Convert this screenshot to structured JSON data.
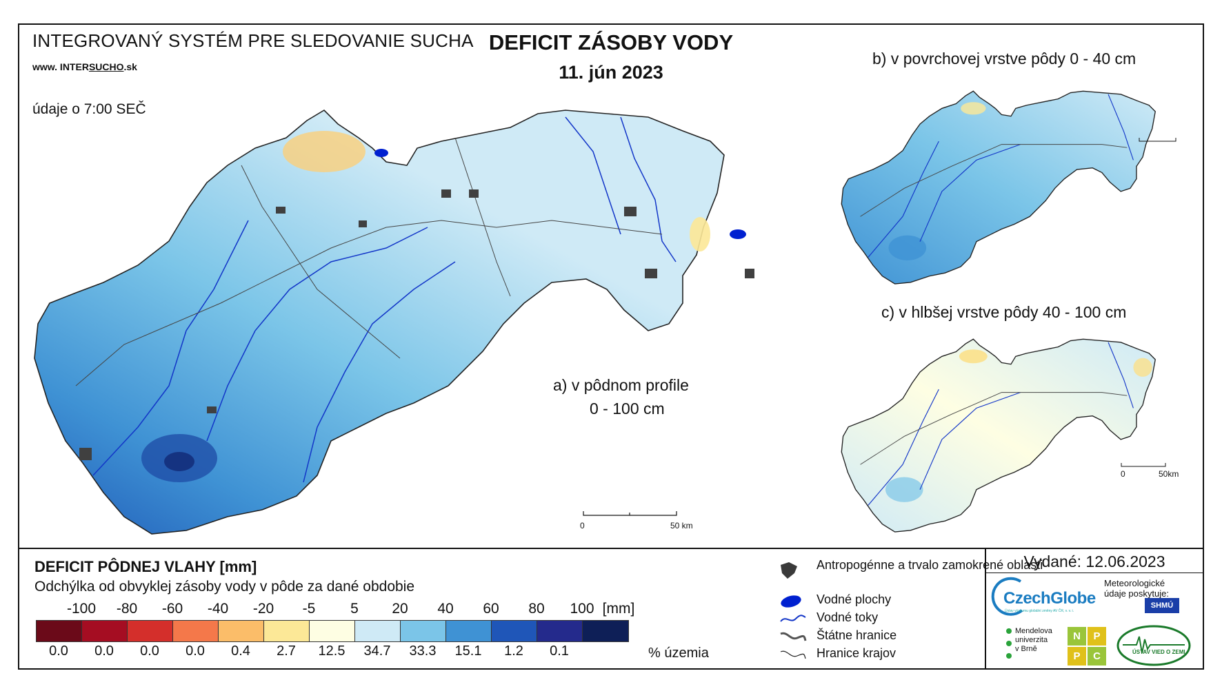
{
  "header": {
    "system_title": "INTEGROVANÝ SYSTÉM PRE SLEDOVANIE SUCHA",
    "website_prefix": "www. INTER",
    "website_underlined": "SUCHO",
    "website_suffix": ".sk",
    "data_time": "údaje o 7:00 SEČ",
    "title": "DEFICIT ZÁSOBY VODY",
    "date": "11. jún 2023"
  },
  "maps": {
    "a_label_line1": "a) v pôdnom profile",
    "a_label_line2": "0 - 100 cm",
    "b_label": "b) v povrchovej vrstve pôdy 0 - 40 cm",
    "c_label": "c) v hlbšej vrstve pôdy 40 - 100 cm",
    "scale_main": {
      "zero": "0",
      "end": "50 km"
    },
    "scale_small": {
      "zero": "0",
      "end": "50km"
    }
  },
  "legend": {
    "title": "DEFICIT PÔDNEJ VLAHY [mm]",
    "subtitle": "Odchýlka od obvyklej zásoby vody v pôde za dané obdobie",
    "tick_labels": [
      "-100",
      "-80",
      "-60",
      "-40",
      "-20",
      "-5",
      "5",
      "20",
      "40",
      "60",
      "80",
      "100"
    ],
    "tick_unit": "[mm]",
    "colors": [
      "#6b0a19",
      "#a50d22",
      "#d42f2b",
      "#f4784a",
      "#fbbd69",
      "#fce897",
      "#fefee3",
      "#cfeaf6",
      "#7bc5e8",
      "#3f92d4",
      "#1f56b8",
      "#242a8c",
      "#0e1f57"
    ],
    "percent_values": [
      "0.0",
      "0.0",
      "0.0",
      "0.0",
      "0.4",
      "2.7",
      "12.5",
      "34.7",
      "33.3",
      "15.1",
      "1.2",
      "0.1"
    ],
    "percent_unit": "% územia"
  },
  "map_legend": {
    "items": [
      {
        "icon": "urban-area-icon",
        "label": "Antropogénne a trvalo zamokrené oblasti"
      },
      {
        "icon": "water-body-icon",
        "label": "Vodné plochy"
      },
      {
        "icon": "river-icon",
        "label": "Vodné toky"
      },
      {
        "icon": "state-border-icon",
        "label": "Štátne hranice"
      },
      {
        "icon": "region-border-icon",
        "label": "Hranice krajov"
      }
    ]
  },
  "issued": {
    "text": "Vydané: 12.06.2023",
    "czechglobe": "CzechGlobe",
    "czechglobe_sub": "Ústav výzkumu globální změny AV ČR, v. v. i.",
    "meteo": "Meteorologické údaje poskytuje:",
    "shmu": "SHMÚ",
    "mendel": [
      "Mendelova",
      "univerzita",
      "v Brně"
    ],
    "npc": [
      "N",
      "P",
      "P",
      "C"
    ],
    "uvz": "ÚSTAV VIED O ZEMI"
  }
}
